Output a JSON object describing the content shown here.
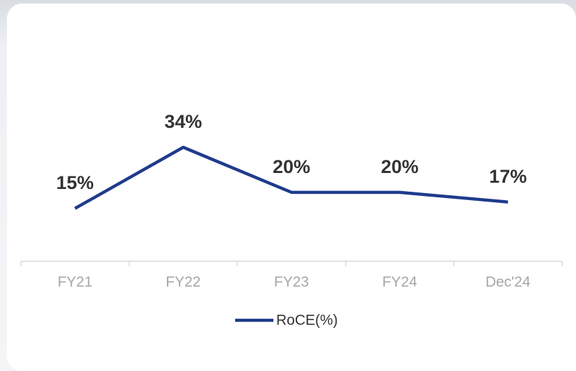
{
  "chart_data": {
    "type": "line",
    "categories": [
      "FY21",
      "FY22",
      "FY23",
      "FY24",
      "Dec'24"
    ],
    "series": [
      {
        "name": "RoCE(%)",
        "color": "#1f3b8c",
        "values": [
          15,
          34,
          20,
          20,
          17
        ],
        "value_labels": [
          "15%",
          "34%",
          "20%",
          "20%",
          "17%"
        ]
      }
    ],
    "legend": "bottom"
  }
}
